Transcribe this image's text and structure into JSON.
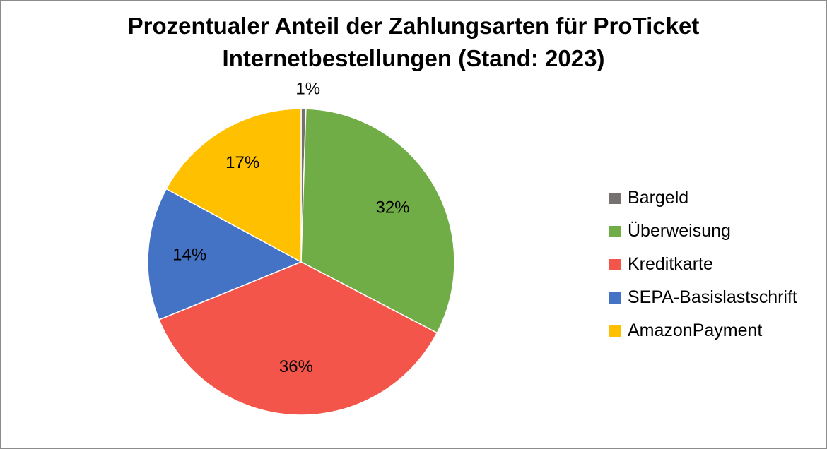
{
  "chart_data": {
    "type": "pie",
    "title_lines": [
      "Prozentualer Anteil der Zahlungsarten für ProTicket",
      "Internetbestellungen (Stand: 2023)"
    ],
    "legend_position": "right",
    "start_angle_deg": 0,
    "direction": "clockwise",
    "slices": [
      {
        "name": "Bargeld",
        "value": 0.5,
        "label": "1%",
        "color": "#767171"
      },
      {
        "name": "Überweisung",
        "value": 32,
        "label": "32%",
        "color": "#70ad47"
      },
      {
        "name": "Kreditkarte",
        "value": 36,
        "label": "36%",
        "color": "#f4554a"
      },
      {
        "name": "SEPA-Basislastschrift",
        "value": 14,
        "label": "14%",
        "color": "#4472c4"
      },
      {
        "name": "AmazonPayment",
        "value": 17,
        "label": "17%",
        "color": "#ffc000"
      }
    ]
  }
}
